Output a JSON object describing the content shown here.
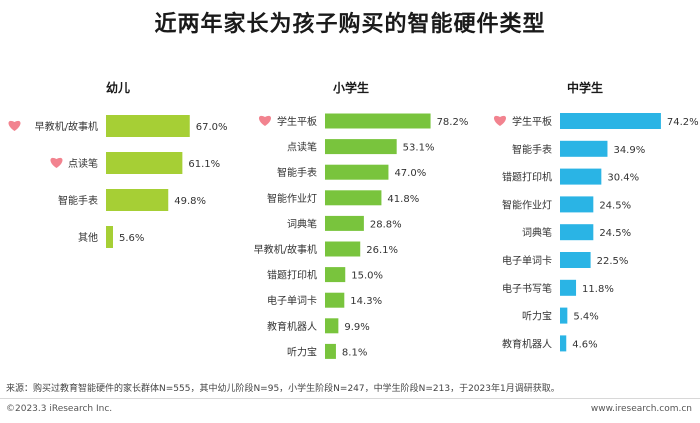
{
  "title": "近两年家长为孩子购买的智能硬件类型",
  "chart_data": [
    {
      "type": "bar",
      "orientation": "horizontal",
      "title": "幼儿",
      "color": "#a6cf35",
      "categories": [
        "早教机/故事机",
        "点读笔",
        "智能手表",
        "其他"
      ],
      "values": [
        67.0,
        61.1,
        49.8,
        5.6
      ],
      "value_suffix": "%",
      "highlighted": [
        true,
        true,
        false,
        false
      ]
    },
    {
      "type": "bar",
      "orientation": "horizontal",
      "title": "小学生",
      "color": "#79c43d",
      "categories": [
        "学生平板",
        "点读笔",
        "智能手表",
        "智能作业灯",
        "词典笔",
        "早教机/故事机",
        "错题打印机",
        "电子单词卡",
        "教育机器人",
        "听力宝"
      ],
      "values": [
        78.2,
        53.1,
        47.0,
        41.8,
        28.8,
        26.1,
        15.0,
        14.3,
        9.9,
        8.1
      ],
      "value_suffix": "%",
      "highlighted": [
        true,
        false,
        false,
        false,
        false,
        false,
        false,
        false,
        false,
        false
      ]
    },
    {
      "type": "bar",
      "orientation": "horizontal",
      "title": "中学生",
      "color": "#2ab4e5",
      "categories": [
        "学生平板",
        "智能手表",
        "错题打印机",
        "智能作业灯",
        "词典笔",
        "电子单词卡",
        "电子书写笔",
        "听力宝",
        "教育机器人"
      ],
      "values": [
        74.2,
        34.9,
        30.4,
        24.5,
        24.5,
        22.5,
        11.8,
        5.4,
        4.6
      ],
      "value_suffix": "%",
      "highlighted": [
        true,
        false,
        false,
        false,
        false,
        false,
        false,
        false,
        false
      ]
    }
  ],
  "footer": {
    "source": "来源：购买过教育智能硬件的家长群体N=555，其中幼儿阶段N=95，小学生阶段N=247，中学生阶段N=213，于2023年1月调研获取。",
    "copyright": "©2023.3 iResearch Inc.",
    "website": "www.iresearch.com.cn"
  },
  "colors": {
    "heart": "#f2838f"
  }
}
